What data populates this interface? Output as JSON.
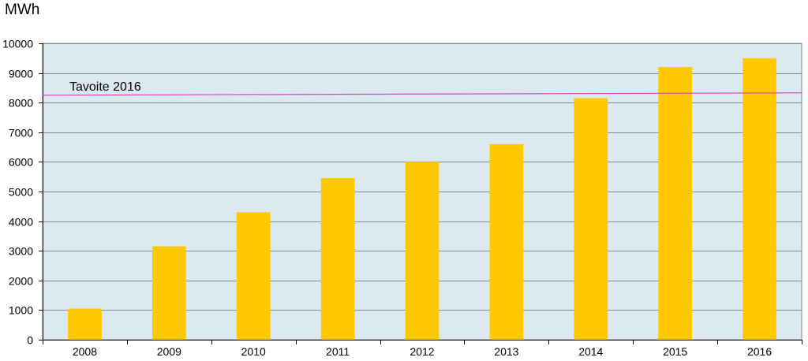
{
  "chart_data": {
    "type": "bar",
    "ylabel": "MWh",
    "categories": [
      "2008",
      "2009",
      "2010",
      "2011",
      "2012",
      "2013",
      "2014",
      "2015",
      "2016"
    ],
    "values": [
      1050,
      3150,
      4300,
      5450,
      6000,
      6600,
      8150,
      9200,
      9500
    ],
    "ylim": [
      0,
      10000
    ],
    "yticks": [
      0,
      1000,
      2000,
      3000,
      4000,
      5000,
      6000,
      7000,
      8000,
      9000,
      10000
    ],
    "grid": true,
    "colors": {
      "bar": "#ffc800",
      "plot_background": "#daeaf0",
      "target_line": "#e040b0",
      "grid": "#8a8a8a"
    },
    "target_line": {
      "label": "Tavoite 2016",
      "y_start": 8250,
      "y_end": 8330
    }
  }
}
